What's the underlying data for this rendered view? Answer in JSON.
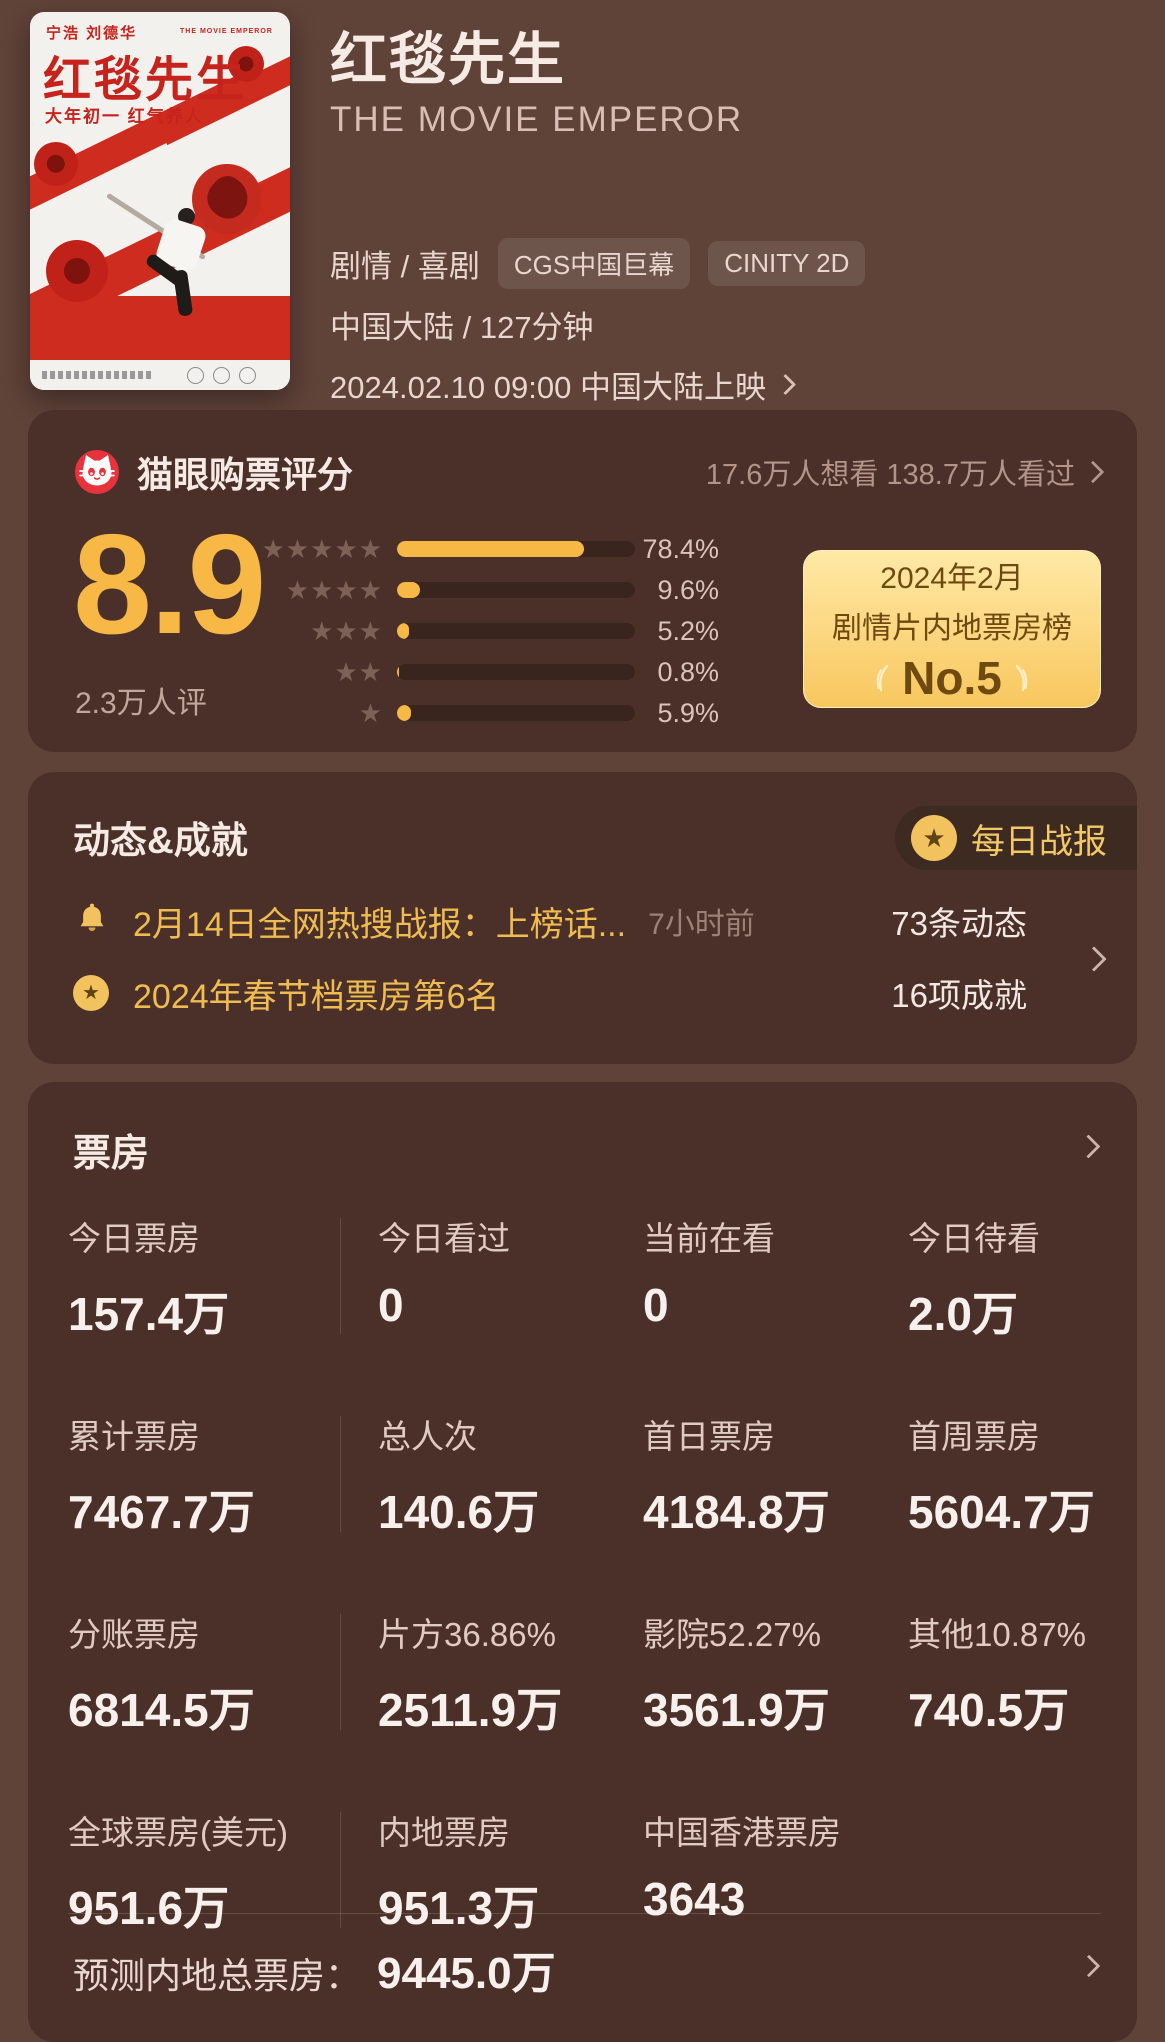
{
  "header": {
    "title": "红毯先生",
    "english_title": "THE MOVIE EMPEROR",
    "genres": "剧情 / 喜剧",
    "format_tags": [
      "CGS中国巨幕",
      "CINITY 2D"
    ],
    "region_duration": "中国大陆 / 127分钟",
    "release": "2024.02.10 09:00 中国大陆上映",
    "poster": {
      "directors": "宁浩  刘德华",
      "english_small": "THE MOVIE EMPEROR",
      "title": "红毯先生",
      "tagline": "大年初一  红气养人"
    }
  },
  "rating": {
    "brand": "猫眼购票评分",
    "want_seen": "17.6万人想看 138.7万人看过",
    "score": "8.9",
    "raters": "2.3万人评",
    "distribution": [
      {
        "stars": 5,
        "percent": "78.4%",
        "value": 78.4
      },
      {
        "stars": 4,
        "percent": "9.6%",
        "value": 9.6
      },
      {
        "stars": 3,
        "percent": "5.2%",
        "value": 5.2
      },
      {
        "stars": 2,
        "percent": "0.8%",
        "value": 0.8
      },
      {
        "stars": 1,
        "percent": "5.9%",
        "value": 5.9
      }
    ],
    "rank_badge": {
      "line1": "2024年2月",
      "line2": "剧情片内地票房榜",
      "line3": "No.5"
    }
  },
  "activity": {
    "title": "动态&成就",
    "daily_report_label": "每日战报",
    "rows": [
      {
        "icon": "bell-icon",
        "text": "2月14日全网热搜战报：上榜话...",
        "time": "7小时前",
        "count": "73条动态"
      },
      {
        "icon": "medal-icon",
        "text": "2024年春节档票房第6名",
        "time": "",
        "count": "16项成就"
      }
    ]
  },
  "boxoffice": {
    "title": "票房",
    "rows": [
      {
        "cells": [
          {
            "label": "今日票房",
            "value": "157.4万"
          },
          {
            "label": "今日看过",
            "value": "0"
          },
          {
            "label": "当前在看",
            "value": "0"
          },
          {
            "label": "今日待看",
            "value": "2.0万"
          }
        ]
      },
      {
        "cells": [
          {
            "label": "累计票房",
            "value": "7467.7万"
          },
          {
            "label": "总人次",
            "value": "140.6万"
          },
          {
            "label": "首日票房",
            "value": "4184.8万"
          },
          {
            "label": "首周票房",
            "value": "5604.7万"
          }
        ]
      },
      {
        "cells": [
          {
            "label": "分账票房",
            "value": "6814.5万"
          },
          {
            "label": "片方36.86%",
            "value": "2511.9万"
          },
          {
            "label": "影院52.27%",
            "value": "3561.9万"
          },
          {
            "label": "其他10.87%",
            "value": "740.5万"
          }
        ]
      },
      {
        "cells": [
          {
            "label": "全球票房(美元)",
            "value": "951.6万"
          },
          {
            "label": "内地票房",
            "value": "951.3万"
          },
          {
            "label": "中国香港票房",
            "value": "3643"
          }
        ]
      }
    ],
    "forecast_label": "预测内地总票房：",
    "forecast_value": "9445.0万"
  },
  "colors": {
    "page_bg": "#5F4238",
    "card_bg": "#4B3029",
    "accent_gold": "#F8B845",
    "activity_gold": "#EFBC52",
    "badge_text": "#6F4A10",
    "maoyan_red": "#E8333C",
    "poster_red": "#CF2C20"
  }
}
